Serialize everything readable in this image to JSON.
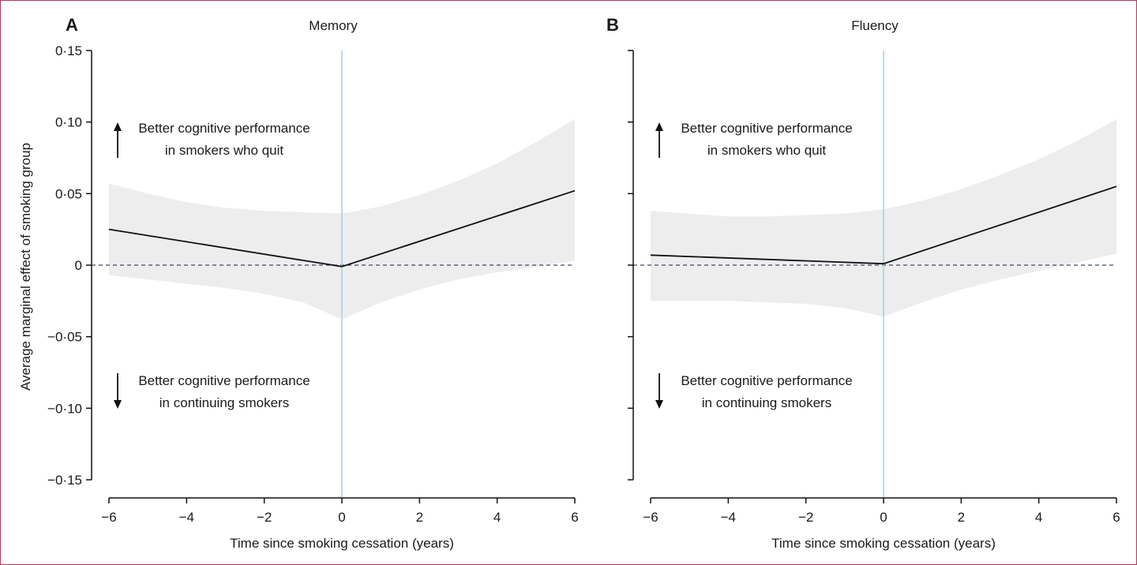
{
  "y_axis_label": "Average marginal effect of smoking group",
  "chart_data": [
    {
      "type": "line",
      "panel_letter": "A",
      "title": "Memory",
      "xlabel": "Time since smoking cessation (years)",
      "xlim": [
        -6,
        6
      ],
      "ylim": [
        -0.15,
        0.15
      ],
      "xticks": [
        -6,
        -4,
        -2,
        0,
        2,
        4,
        6
      ],
      "xtick_labels": [
        "−6",
        "−4",
        "−2",
        "0",
        "2",
        "4",
        "6"
      ],
      "yticks": [
        0.15,
        0.1,
        0.05,
        0,
        -0.05,
        -0.1,
        -0.15
      ],
      "ytick_labels": [
        "0·15",
        "0·10",
        "0·05",
        "0",
        "−0·05",
        "−0·10",
        "−0·15"
      ],
      "reference_line_y": 0,
      "reference_line_x": 0,
      "series": [
        {
          "x": [
            -6,
            0,
            6
          ],
          "y": [
            0.025,
            -0.001,
            0.052
          ]
        }
      ],
      "confidence_band": {
        "x": [
          -6,
          -5,
          -4,
          -3,
          -2,
          -1,
          0,
          1,
          2,
          3,
          4,
          5,
          6
        ],
        "lower": [
          -0.007,
          -0.01,
          -0.013,
          -0.016,
          -0.02,
          -0.026,
          -0.038,
          -0.026,
          -0.017,
          -0.01,
          -0.005,
          -0.001,
          0.003
        ],
        "upper": [
          0.057,
          0.05,
          0.044,
          0.04,
          0.038,
          0.037,
          0.036,
          0.041,
          0.049,
          0.059,
          0.071,
          0.086,
          0.102
        ]
      },
      "annotations": [
        {
          "direction": "up",
          "lines": [
            "Better cognitive performance",
            "in smokers who quit"
          ]
        },
        {
          "direction": "down",
          "lines": [
            "Better cognitive performance",
            "in continuing smokers"
          ]
        }
      ],
      "colors": {
        "line": "#111111",
        "band": "#ededed",
        "vline": "#a9cde6",
        "hline": "#3f4a6a"
      }
    },
    {
      "type": "line",
      "panel_letter": "B",
      "title": "Fluency",
      "xlabel": "Time since smoking cessation (years)",
      "xlim": [
        -6,
        6
      ],
      "ylim": [
        -0.15,
        0.15
      ],
      "xticks": [
        -6,
        -4,
        -2,
        0,
        2,
        4,
        6
      ],
      "xtick_labels": [
        "−6",
        "−4",
        "−2",
        "0",
        "2",
        "4",
        "6"
      ],
      "yticks": [
        0.15,
        0.1,
        0.05,
        0,
        -0.05,
        -0.1,
        -0.15
      ],
      "ytick_labels": [
        "",
        "",
        "",
        "",
        "",
        "",
        ""
      ],
      "reference_line_y": 0,
      "reference_line_x": 0,
      "series": [
        {
          "x": [
            -6,
            0,
            6
          ],
          "y": [
            0.007,
            0.001,
            0.055
          ]
        }
      ],
      "confidence_band": {
        "x": [
          -6,
          -5,
          -4,
          -3,
          -2,
          -1,
          0,
          1,
          2,
          3,
          4,
          5,
          6
        ],
        "lower": [
          -0.025,
          -0.025,
          -0.025,
          -0.026,
          -0.027,
          -0.03,
          -0.036,
          -0.026,
          -0.017,
          -0.01,
          -0.004,
          0.002,
          0.008
        ],
        "upper": [
          0.038,
          0.036,
          0.034,
          0.034,
          0.035,
          0.036,
          0.039,
          0.045,
          0.053,
          0.063,
          0.074,
          0.087,
          0.102
        ]
      },
      "annotations": [
        {
          "direction": "up",
          "lines": [
            "Better cognitive performance",
            "in smokers who quit"
          ]
        },
        {
          "direction": "down",
          "lines": [
            "Better cognitive performance",
            "in continuing smokers"
          ]
        }
      ],
      "colors": {
        "line": "#111111",
        "band": "#ededed",
        "vline": "#a9cde6",
        "hline": "#3f4a6a"
      }
    }
  ]
}
